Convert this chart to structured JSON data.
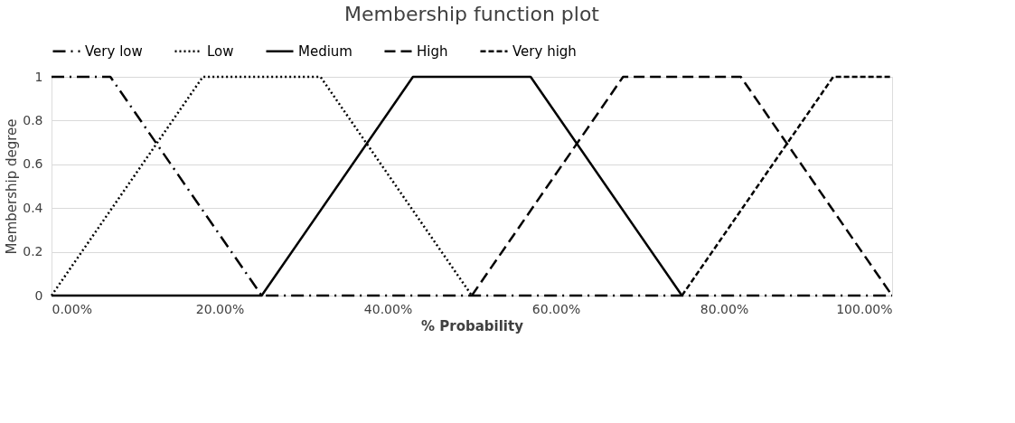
{
  "chart_data": {
    "type": "line",
    "title": "Membership function plot",
    "xlabel": "% Probability",
    "ylabel": "Membership degree",
    "series": [
      {
        "name": "Very low",
        "color": "#000000",
        "line_style": "dashdot",
        "x": [
          0,
          7,
          25,
          100
        ],
        "values": [
          1,
          1,
          0,
          0
        ]
      },
      {
        "name": "Low",
        "color": "#000000",
        "line_style": "dotted",
        "x": [
          0,
          18,
          32,
          50
        ],
        "values": [
          0,
          1,
          1,
          0
        ]
      },
      {
        "name": "Medium",
        "color": "#000000",
        "line_style": "solid",
        "x": [
          0,
          25,
          43,
          57,
          75
        ],
        "values": [
          0,
          0,
          1,
          1,
          0
        ]
      },
      {
        "name": "High",
        "color": "#000000",
        "line_style": "long_dashed",
        "x": [
          50,
          68,
          82,
          100
        ],
        "values": [
          0,
          1,
          1,
          0
        ]
      },
      {
        "name": "Very high",
        "color": "#000000",
        "line_style": "dashed",
        "x": [
          75,
          93,
          100
        ],
        "values": [
          0,
          1,
          1
        ]
      }
    ],
    "xlim": [
      0,
      100
    ],
    "xticks": [
      {
        "value": 0,
        "label": "0.00%"
      },
      {
        "value": 20,
        "label": "20.00%"
      },
      {
        "value": 40,
        "label": "40.00%"
      },
      {
        "value": 60,
        "label": "60.00%"
      },
      {
        "value": 80,
        "label": "80.00%"
      },
      {
        "value": 100,
        "label": "100.00%"
      }
    ],
    "ylim": [
      0,
      1
    ],
    "yticks": [
      0,
      0.2,
      0.4,
      0.6,
      0.8,
      1
    ],
    "grid": "y",
    "legend": "top",
    "marker": "none"
  }
}
